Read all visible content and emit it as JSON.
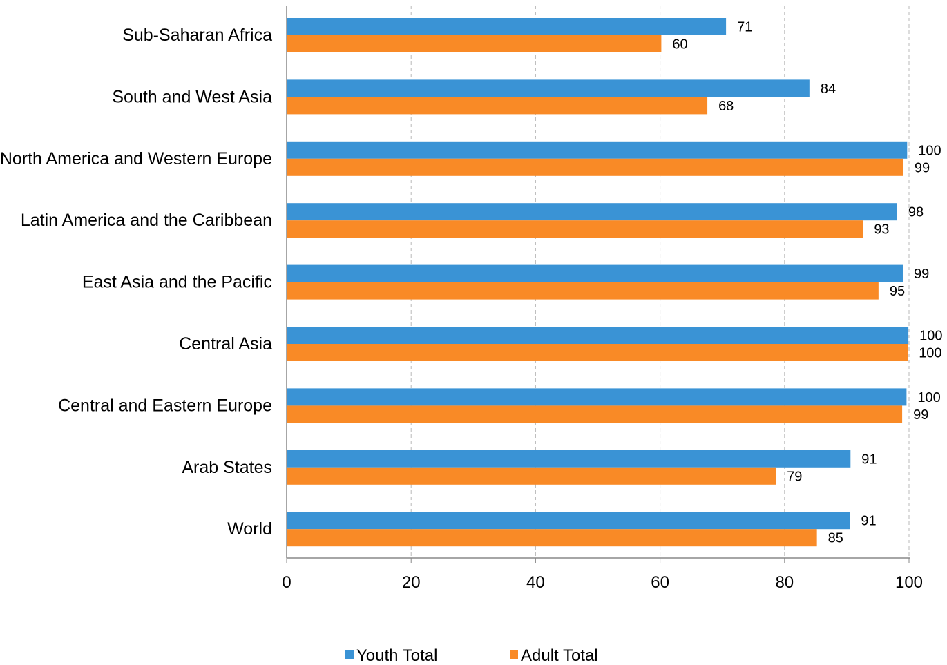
{
  "chart_data": {
    "type": "bar",
    "orientation": "horizontal",
    "categories": [
      "Sub-Saharan Africa",
      "South and West Asia",
      "North America and Western Europe",
      "Latin America and the Caribbean",
      "East Asia and the Pacific",
      "Central Asia",
      "Central and Eastern Europe",
      "Arab States",
      "World"
    ],
    "series": [
      {
        "name": "Youth Total",
        "color": "#3A93D5",
        "values": [
          70.6,
          84.0,
          99.7,
          98.1,
          99.0,
          99.9,
          99.6,
          90.6,
          90.5
        ],
        "labels": [
          "71",
          "84",
          "100",
          "98",
          "99",
          "100",
          "100",
          "91",
          "91"
        ]
      },
      {
        "name": "Adult Total",
        "color": "#F98A26",
        "values": [
          60.2,
          67.6,
          99.1,
          92.6,
          95.1,
          99.8,
          98.9,
          78.6,
          85.2
        ],
        "labels": [
          "60",
          "68",
          "99",
          "93",
          "95",
          "100",
          "99",
          "79",
          "85"
        ]
      }
    ],
    "xlim": [
      0,
      100
    ],
    "xticks": [
      "0",
      "20",
      "40",
      "60",
      "80",
      "100"
    ],
    "title": "",
    "xlabel": "",
    "ylabel": "",
    "grid": "vertical dashed",
    "legend_position": "bottom"
  }
}
